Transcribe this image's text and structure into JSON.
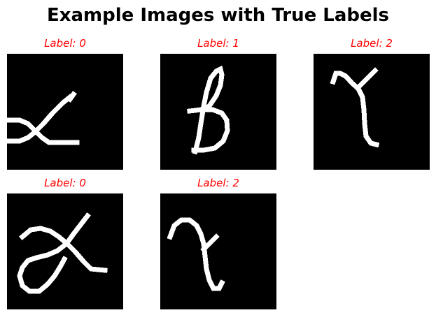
{
  "title": "Example Images with True Labels",
  "colors": {
    "label": "#ff0000",
    "image_background": "#000000",
    "stroke": "#ffffff",
    "title": "#000000"
  },
  "chart_data": {
    "type": "image-grid",
    "title": "Example Images with True Labels",
    "image_style": "grayscale handwritten glyph on black background",
    "panels": [
      {
        "label_text": "Label: 0",
        "label_value": 0,
        "depicts": "alpha-glyph"
      },
      {
        "label_text": "Label: 1",
        "label_value": 1,
        "depicts": "beta-glyph"
      },
      {
        "label_text": "Label: 2",
        "label_value": 2,
        "depicts": "gamma-glyph"
      },
      {
        "label_text": "Label: 0",
        "label_value": 0,
        "depicts": "alpha-glyph"
      },
      {
        "label_text": "Label: 2",
        "label_value": 2,
        "depicts": "gamma-glyph"
      }
    ]
  }
}
